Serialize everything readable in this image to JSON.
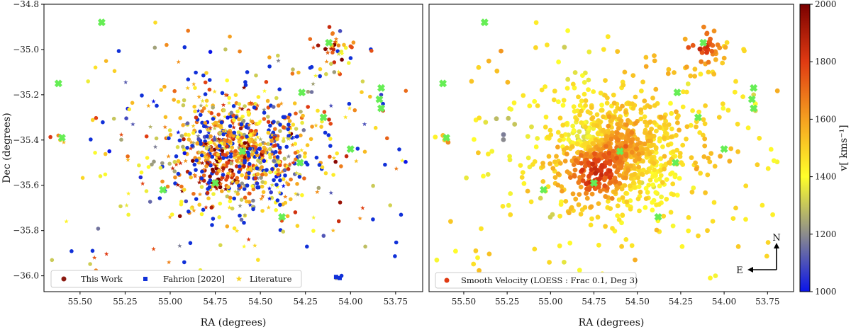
{
  "chart_data": [
    {
      "type": "scatter",
      "panel": "left",
      "xlabel": "RA (degrees)",
      "ylabel": "Dec (degrees)",
      "xlim": [
        55.7,
        53.6
      ],
      "ylim": [
        -36.07,
        -34.8
      ],
      "x_ticks": [
        55.5,
        55.25,
        55.0,
        54.75,
        54.5,
        54.25,
        54.0,
        53.75
      ],
      "x_tick_labels": [
        "55.50",
        "55.25",
        "55.00",
        "54.75",
        "54.50",
        "54.25",
        "54.00",
        "53.75"
      ],
      "y_ticks": [
        -34.8,
        -35.0,
        -35.2,
        -35.4,
        -35.6,
        -35.8,
        -36.0
      ],
      "y_tick_labels": [
        "−34.8",
        "−35.0",
        "−35.2",
        "−35.4",
        "−35.6",
        "−35.8",
        "−36.0"
      ],
      "legend": {
        "position": "lower-left",
        "entries": [
          {
            "label": "This Work",
            "marker": "circle",
            "color": "#8b1a10"
          },
          {
            "label": "Fahrion [2020]",
            "marker": "square",
            "color": "#1030d8"
          },
          {
            "label": "Literature",
            "marker": "star",
            "color": "#f5d020"
          }
        ]
      },
      "series": [
        {
          "name": "This Work",
          "marker": "circle",
          "n_points": 620
        },
        {
          "name": "Fahrion [2020]",
          "marker": "square",
          "n_points": 180
        },
        {
          "name": "Literature",
          "marker": "star",
          "n_points": 260
        }
      ],
      "highlight_points": {
        "marker": "X",
        "color": "#66ee55",
        "points": [
          [
            55.38,
            -34.88
          ],
          [
            55.62,
            -35.15
          ],
          [
            55.6,
            -35.39
          ],
          [
            55.04,
            -35.62
          ],
          [
            54.75,
            -35.59
          ],
          [
            54.6,
            -35.45
          ],
          [
            54.38,
            -35.74
          ],
          [
            54.28,
            -35.5
          ],
          [
            54.27,
            -35.19
          ],
          [
            54.15,
            -35.3
          ],
          [
            54.12,
            -34.97
          ],
          [
            54.0,
            -35.44
          ],
          [
            53.84,
            -35.22
          ],
          [
            53.83,
            -35.26
          ],
          [
            53.83,
            -35.17
          ]
        ]
      }
    },
    {
      "type": "scatter",
      "panel": "right",
      "xlabel": "RA (degrees)",
      "xlim": [
        55.7,
        53.6
      ],
      "ylim": [
        -36.07,
        -34.8
      ],
      "x_ticks": [
        55.5,
        55.25,
        55.0,
        54.75,
        54.5,
        54.25,
        54.0,
        53.75
      ],
      "x_tick_labels": [
        "55.50",
        "55.25",
        "55.00",
        "54.75",
        "54.50",
        "54.25",
        "54.00",
        "53.75"
      ],
      "colorbar": {
        "label": "v[ kms⁻¹]",
        "range": [
          1000,
          2000
        ],
        "ticks": [
          1000,
          1200,
          1400,
          1600,
          1800,
          2000
        ],
        "tick_labels": [
          "1000",
          "1200",
          "1400",
          "1600",
          "1800",
          "2000"
        ],
        "colormap": [
          "#0a14e8",
          "#8c8c8c",
          "#ffff2a",
          "#f5a020",
          "#e03a12",
          "#7a0000"
        ]
      },
      "legend": {
        "position": "lower-left",
        "entries": [
          {
            "label": "Smooth Velocity (LOESS : Frac 0.1, Deg 3)",
            "marker": "circle",
            "color": "#e03a12"
          }
        ]
      },
      "compass": {
        "north": "N",
        "east": "E"
      },
      "series": [
        {
          "name": "Smooth Velocity (LOESS : Frac 0.1, Deg 3)",
          "marker": "circle",
          "n_points": 1060
        }
      ]
    }
  ]
}
